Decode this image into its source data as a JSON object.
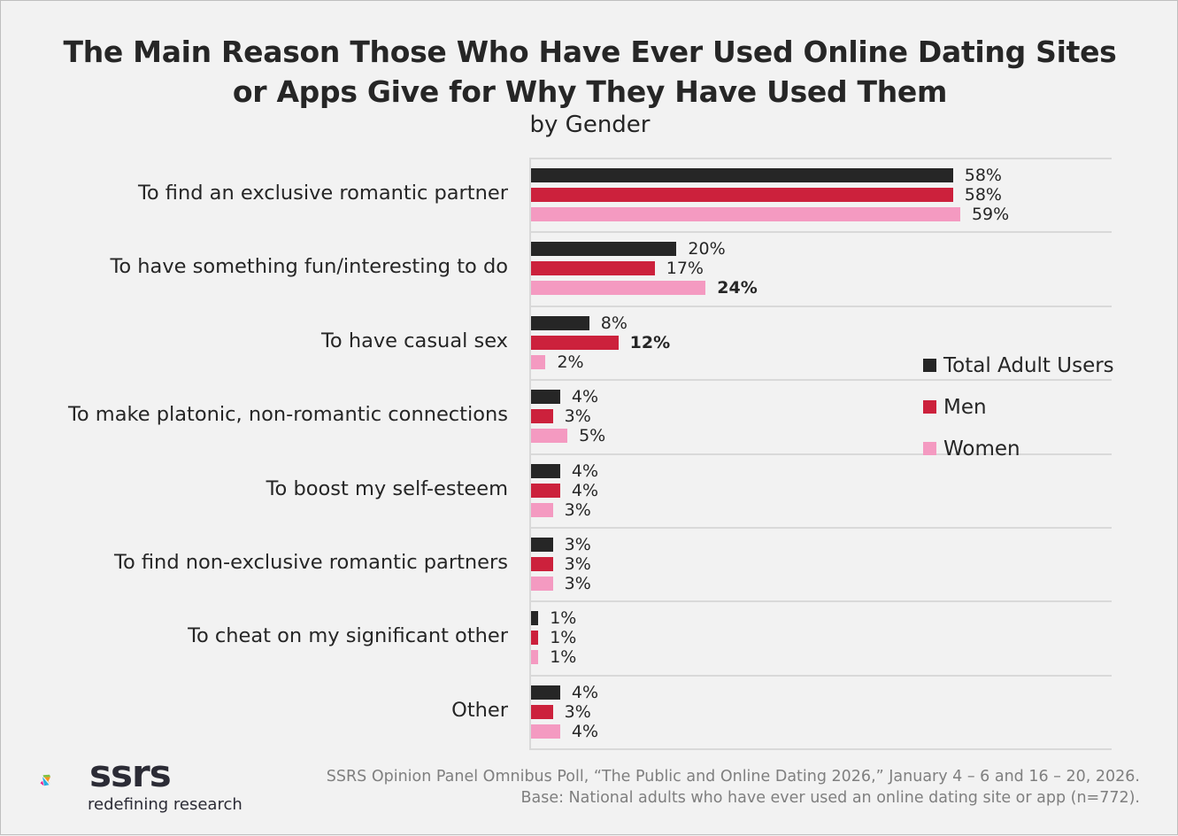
{
  "header": {
    "title_line1": "The Main Reason Those Who Have Ever Used Online Dating Sites",
    "title_line2": "or Apps Give for Why They Have Used Them",
    "subtitle": "by Gender"
  },
  "colors": {
    "total": "#262626",
    "men": "#cc213c",
    "women": "#f49ac1",
    "gridline": "#d9d9d9",
    "background": "#f2f2f2"
  },
  "legend": {
    "items": [
      {
        "label": "Total Adult Users",
        "color": "#262626"
      },
      {
        "label": "Men",
        "color": "#cc213c"
      },
      {
        "label": "Women",
        "color": "#f49ac1"
      }
    ]
  },
  "chart_data": {
    "type": "bar",
    "orientation": "horizontal",
    "title": "The Main Reason Those Who Have Ever Used Online Dating Sites or Apps Give for Why They Have Used Them",
    "subtitle": "by Gender",
    "xlabel": "",
    "ylabel": "",
    "xlim": [
      0,
      80
    ],
    "grid": "horizontal separators between categories",
    "legend_position": "right",
    "categories": [
      "To find an exclusive romantic partner",
      "To have something fun/interesting to do",
      "To have casual sex",
      "To make platonic, non-romantic connections",
      "To boost my self-esteem",
      "To find non-exclusive romantic partners",
      "To cheat on my significant other",
      "Other"
    ],
    "series": [
      {
        "name": "Total Adult Users",
        "values": [
          58,
          20,
          8,
          4,
          4,
          3,
          1,
          4
        ],
        "labels": [
          "58%",
          "20%",
          "8%",
          "4%",
          "4%",
          "3%",
          "1%",
          "4%"
        ]
      },
      {
        "name": "Men",
        "values": [
          58,
          17,
          12,
          3,
          4,
          3,
          1,
          3
        ],
        "labels": [
          "58%",
          "17%",
          "12%",
          "3%",
          "4%",
          "3%",
          "1%",
          "3%"
        ]
      },
      {
        "name": "Women",
        "values": [
          59,
          24,
          2,
          5,
          3,
          3,
          1,
          4
        ],
        "labels": [
          "59%",
          "24%",
          "2%",
          "5%",
          "3%",
          "3%",
          "1%",
          "4%"
        ]
      }
    ],
    "bold_labels": [
      {
        "series": "Women",
        "category": "To have something fun/interesting to do"
      },
      {
        "series": "Men",
        "category": "To have casual sex"
      }
    ]
  },
  "footer": {
    "logo_word": "ssrs",
    "logo_tagline": "redefining research",
    "source_line1": "SSRS Opinion Panel Omnibus Poll, “The Public and Online Dating 2026,” January 4 – 6 and 16 – 20, 2026.",
    "source_line2": "Base: National adults who have ever used an online dating site or app (n=772)."
  }
}
